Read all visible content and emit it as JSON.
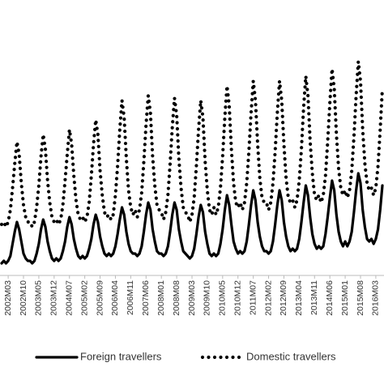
{
  "chart_data": {
    "type": "line",
    "categories": [
      null,
      null,
      null,
      "2002M03",
      null,
      null,
      null,
      null,
      null,
      null,
      "2002M10",
      null,
      null,
      null,
      null,
      null,
      null,
      "2003M05",
      null,
      null,
      null,
      null,
      null,
      null,
      "2003M12",
      null,
      null,
      null,
      null,
      null,
      null,
      "2004M07",
      null,
      null,
      null,
      null,
      null,
      null,
      "2005M02",
      null,
      null,
      null,
      null,
      null,
      null,
      "2005M09",
      null,
      null,
      null,
      null,
      null,
      null,
      "2006M04",
      null,
      null,
      null,
      null,
      null,
      null,
      "2006M11",
      null,
      null,
      null,
      null,
      null,
      null,
      "2007M06",
      null,
      null,
      null,
      null,
      null,
      null,
      "2008M01",
      null,
      null,
      null,
      null,
      null,
      null,
      "2008M08",
      null,
      null,
      null,
      null,
      null,
      null,
      "2009M03",
      null,
      null,
      null,
      null,
      null,
      null,
      "2009M10",
      null,
      null,
      null,
      null,
      null,
      null,
      "2010M05",
      null,
      null,
      null,
      null,
      null,
      null,
      "2010M12",
      null,
      null,
      null,
      null,
      null,
      null,
      "2011M07",
      null,
      null,
      null,
      null,
      null,
      null,
      "2012M02",
      null,
      null,
      null,
      null,
      null,
      null,
      "2012M09",
      null,
      null,
      null,
      null,
      null,
      null,
      "2013M04",
      null,
      null,
      null,
      null,
      null,
      null,
      "2013M11",
      null,
      null,
      null,
      null,
      null,
      null,
      "2014M06",
      null,
      null,
      null,
      null,
      null,
      null,
      "2015M01",
      null,
      null,
      null,
      null,
      null,
      null,
      "2015M08",
      null,
      null,
      null,
      null,
      null,
      null,
      "2016M03",
      null,
      null,
      null
    ],
    "series": [
      {
        "name": "Foreign travellers",
        "color": "#000000",
        "style": "solid",
        "values": [
          5,
          6,
          5,
          6,
          8,
          13,
          18,
          22,
          19,
          14,
          9,
          7,
          6,
          6,
          5,
          6,
          9,
          13,
          19,
          23,
          20,
          14,
          10,
          7,
          6,
          7,
          6,
          7,
          10,
          14,
          20,
          24,
          21,
          15,
          11,
          8,
          7,
          8,
          7,
          8,
          11,
          15,
          21,
          25,
          22,
          16,
          12,
          9,
          8,
          9,
          8,
          9,
          12,
          17,
          23,
          28,
          25,
          18,
          13,
          10,
          9,
          9,
          8,
          9,
          12,
          18,
          25,
          30,
          27,
          19,
          14,
          10,
          9,
          9,
          8,
          9,
          12,
          18,
          25,
          30,
          27,
          19,
          14,
          10,
          9,
          8,
          7,
          8,
          11,
          17,
          24,
          29,
          26,
          18,
          13,
          9,
          8,
          9,
          8,
          9,
          13,
          19,
          27,
          33,
          29,
          21,
          14,
          11,
          9,
          10,
          9,
          10,
          14,
          21,
          29,
          35,
          31,
          22,
          16,
          12,
          10,
          10,
          9,
          10,
          14,
          21,
          29,
          35,
          31,
          22,
          16,
          12,
          10,
          11,
          10,
          11,
          15,
          22,
          30,
          37,
          33,
          24,
          17,
          13,
          11,
          12,
          11,
          12,
          17,
          24,
          32,
          39,
          35,
          25,
          18,
          14,
          12,
          14,
          12,
          14,
          18,
          26,
          35,
          42,
          38,
          27,
          20,
          15,
          14,
          15,
          13,
          15,
          19,
          27,
          37
        ]
      },
      {
        "name": "Domestic travellers",
        "color": "#000000",
        "style": "dotted",
        "values": [
          21,
          22,
          20,
          22,
          27,
          36,
          46,
          55,
          50,
          38,
          29,
          24,
          22,
          22,
          20,
          22,
          28,
          37,
          49,
          58,
          52,
          39,
          30,
          24,
          22,
          23,
          21,
          23,
          29,
          39,
          50,
          60,
          54,
          41,
          31,
          25,
          23,
          24,
          22,
          24,
          30,
          41,
          54,
          64,
          58,
          43,
          33,
          26,
          24,
          25,
          23,
          25,
          33,
          45,
          60,
          72,
          65,
          48,
          35,
          28,
          25,
          27,
          24,
          27,
          34,
          47,
          62,
          74,
          67,
          49,
          37,
          29,
          27,
          26,
          23,
          26,
          33,
          46,
          61,
          73,
          66,
          48,
          36,
          28,
          26,
          25,
          22,
          25,
          32,
          45,
          60,
          72,
          65,
          47,
          35,
          27,
          25,
          28,
          25,
          28,
          36,
          49,
          65,
          78,
          70,
          52,
          38,
          30,
          28,
          30,
          27,
          30,
          38,
          51,
          67,
          80,
          72,
          54,
          40,
          32,
          30,
          30,
          27,
          30,
          38,
          51,
          67,
          80,
          72,
          54,
          40,
          32,
          30,
          31,
          28,
          31,
          39,
          52,
          69,
          82,
          74,
          55,
          42,
          33,
          31,
          33,
          30,
          33,
          41,
          55,
          71,
          85,
          77,
          58,
          44,
          36,
          33,
          35,
          32,
          35,
          43,
          57,
          74,
          88,
          80,
          60,
          46,
          38,
          35,
          36,
          33,
          36,
          45,
          60,
          77
        ]
      }
    ],
    "ylim": [
      0,
      100
    ],
    "legend": "bottom"
  }
}
